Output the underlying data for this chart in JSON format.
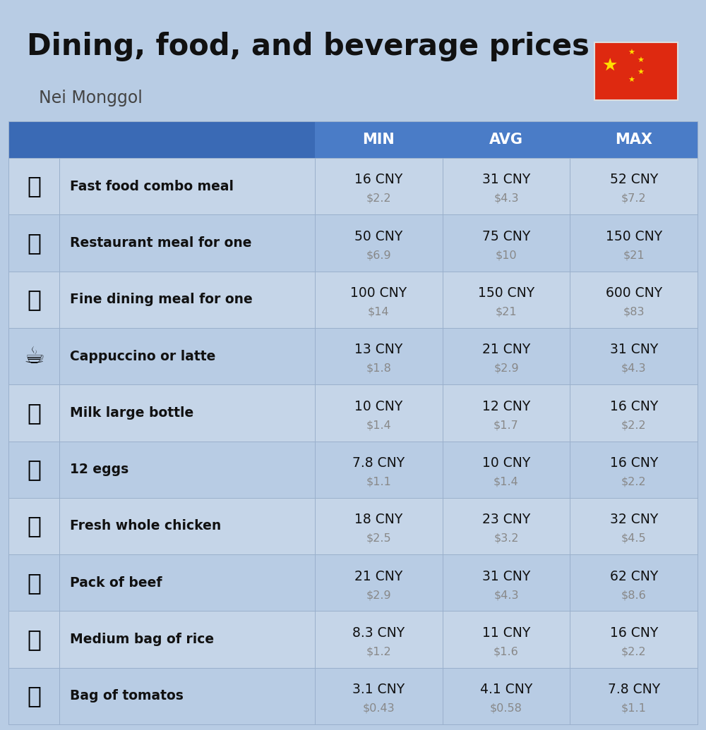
{
  "title": "Dining, food, and beverage prices",
  "subtitle": "Nei Monggol",
  "bg_color": "#b8cce4",
  "header_bg": "#4a7cc7",
  "row_bg_even": "#c5d5e8",
  "row_bg_odd": "#b8cce4",
  "col_headers": [
    "MIN",
    "AVG",
    "MAX"
  ],
  "items": [
    {
      "label": "Fast food combo meal",
      "emoji": "🍔",
      "min_cny": "16 CNY",
      "min_usd": "$2.2",
      "avg_cny": "31 CNY",
      "avg_usd": "$4.3",
      "max_cny": "52 CNY",
      "max_usd": "$7.2"
    },
    {
      "label": "Restaurant meal for one",
      "emoji": "🍳",
      "min_cny": "50 CNY",
      "min_usd": "$6.9",
      "avg_cny": "75 CNY",
      "avg_usd": "$10",
      "max_cny": "150 CNY",
      "max_usd": "$21"
    },
    {
      "label": "Fine dining meal for one",
      "emoji": "🍽",
      "min_cny": "100 CNY",
      "min_usd": "$14",
      "avg_cny": "150 CNY",
      "avg_usd": "$21",
      "max_cny": "600 CNY",
      "max_usd": "$83"
    },
    {
      "label": "Cappuccino or latte",
      "emoji": "☕",
      "min_cny": "13 CNY",
      "min_usd": "$1.8",
      "avg_cny": "21 CNY",
      "avg_usd": "$2.9",
      "max_cny": "31 CNY",
      "max_usd": "$4.3"
    },
    {
      "label": "Milk large bottle",
      "emoji": "🥛",
      "min_cny": "10 CNY",
      "min_usd": "$1.4",
      "avg_cny": "12 CNY",
      "avg_usd": "$1.7",
      "max_cny": "16 CNY",
      "max_usd": "$2.2"
    },
    {
      "label": "12 eggs",
      "emoji": "🥚",
      "min_cny": "7.8 CNY",
      "min_usd": "$1.1",
      "avg_cny": "10 CNY",
      "avg_usd": "$1.4",
      "max_cny": "16 CNY",
      "max_usd": "$2.2"
    },
    {
      "label": "Fresh whole chicken",
      "emoji": "🐔",
      "min_cny": "18 CNY",
      "min_usd": "$2.5",
      "avg_cny": "23 CNY",
      "avg_usd": "$3.2",
      "max_cny": "32 CNY",
      "max_usd": "$4.5"
    },
    {
      "label": "Pack of beef",
      "emoji": "🥩",
      "min_cny": "21 CNY",
      "min_usd": "$2.9",
      "avg_cny": "31 CNY",
      "avg_usd": "$4.3",
      "max_cny": "62 CNY",
      "max_usd": "$8.6"
    },
    {
      "label": "Medium bag of rice",
      "emoji": "🍚",
      "min_cny": "8.3 CNY",
      "min_usd": "$1.2",
      "avg_cny": "11 CNY",
      "avg_usd": "$1.6",
      "max_cny": "16 CNY",
      "max_usd": "$2.2"
    },
    {
      "label": "Bag of tomatos",
      "emoji": "🍅",
      "min_cny": "3.1 CNY",
      "min_usd": "$0.43",
      "avg_cny": "4.1 CNY",
      "avg_usd": "$0.58",
      "max_cny": "7.8 CNY",
      "max_usd": "$1.1"
    }
  ]
}
